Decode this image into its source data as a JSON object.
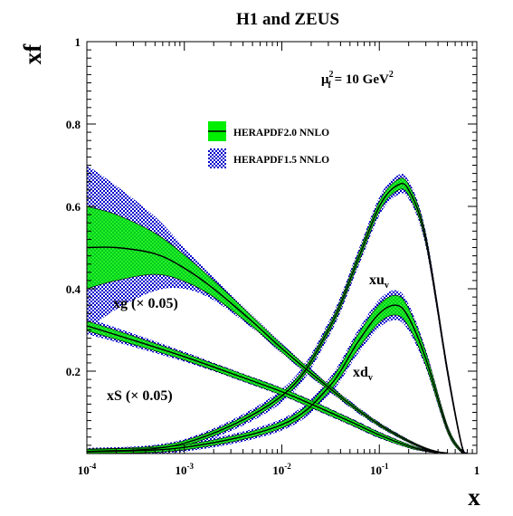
{
  "chart_data": {
    "type": "area",
    "title": "H1 and ZEUS",
    "xlabel": "x",
    "ylabel": "xf",
    "xscale": "log",
    "xlim": [
      0.0001,
      1
    ],
    "ylim": [
      0,
      1
    ],
    "x_tick_labels": [
      {
        "value": 0.0001,
        "base": "10",
        "exp": "-4"
      },
      {
        "value": 0.001,
        "base": "10",
        "exp": "-3"
      },
      {
        "value": 0.01,
        "base": "10",
        "exp": "-2"
      },
      {
        "value": 0.1,
        "base": "10",
        "exp": "-1"
      },
      {
        "value": 1,
        "base": "1",
        "exp": ""
      }
    ],
    "y_tick_labels": [
      {
        "value": 0.2,
        "label": "0.2"
      },
      {
        "value": 0.4,
        "label": "0.4"
      },
      {
        "value": 0.6,
        "label": "0.6"
      },
      {
        "value": 0.8,
        "label": "0.8"
      },
      {
        "value": 1.0,
        "label": "1"
      }
    ],
    "scale_label": {
      "base": "μ",
      "sup": "2",
      "sub": "f",
      "rest": " = 10 GeV",
      "rest_sup": "2"
    },
    "legend_position": "top-center",
    "legend": [
      {
        "name": "HERAPDF2.0 NNLO",
        "style": "green band with black central line",
        "color": "#00ee00"
      },
      {
        "name": "HERAPDF1.5 NNLO",
        "style": "blue hatched band",
        "color": "#0000cc"
      }
    ],
    "annotations": {
      "xuv": {
        "main": "xu",
        "sub": "v"
      },
      "xdv": {
        "main": "xd",
        "sub": "v"
      },
      "xg": "xg (× 0.05)",
      "xS": "xS (× 0.05)"
    },
    "series": [
      {
        "name": "xu_v",
        "x": [
          0.0001,
          0.001,
          0.01,
          0.03,
          0.06,
          0.1,
          0.15,
          0.2,
          0.3,
          0.5,
          0.7,
          0.8
        ],
        "central": [
          0.005,
          0.025,
          0.14,
          0.3,
          0.47,
          0.6,
          0.65,
          0.64,
          0.52,
          0.2,
          0.02,
          0.0
        ],
        "band_2p0": [
          0.006,
          0.006,
          0.008,
          0.009,
          0.011,
          0.012,
          0.013,
          0.013,
          0.011,
          0.008,
          0.004,
          0.002
        ],
        "band_1p5": [
          0.008,
          0.01,
          0.016,
          0.018,
          0.02,
          0.022,
          0.024,
          0.022,
          0.018,
          0.012,
          0.006,
          0.003
        ]
      },
      {
        "name": "xd_v",
        "x": [
          0.0001,
          0.001,
          0.01,
          0.03,
          0.06,
          0.1,
          0.15,
          0.2,
          0.3,
          0.5,
          0.7,
          0.8
        ],
        "central": [
          0.004,
          0.015,
          0.07,
          0.16,
          0.27,
          0.34,
          0.36,
          0.33,
          0.23,
          0.06,
          0.005,
          0.0
        ],
        "band_2p0": [
          0.006,
          0.006,
          0.008,
          0.012,
          0.018,
          0.022,
          0.024,
          0.022,
          0.016,
          0.008,
          0.003,
          0.002
        ],
        "band_1p5": [
          0.008,
          0.01,
          0.014,
          0.02,
          0.028,
          0.034,
          0.036,
          0.032,
          0.022,
          0.01,
          0.004,
          0.002
        ]
      },
      {
        "name": "xg (× 0.05)",
        "x": [
          0.0001,
          0.0002,
          0.0005,
          0.001,
          0.002,
          0.005,
          0.01,
          0.02,
          0.05,
          0.1,
          0.2,
          0.3,
          0.4,
          0.5
        ],
        "central": [
          0.5,
          0.5,
          0.485,
          0.45,
          0.4,
          0.32,
          0.255,
          0.195,
          0.12,
          0.07,
          0.03,
          0.012,
          0.004,
          0.001
        ],
        "band_2p0": [
          0.1,
          0.08,
          0.05,
          0.032,
          0.02,
          0.012,
          0.009,
          0.007,
          0.005,
          0.004,
          0.003,
          0.002,
          0.001,
          0.001
        ],
        "band_1p5": [
          0.2,
          0.15,
          0.09,
          0.05,
          0.028,
          0.016,
          0.012,
          0.01,
          0.008,
          0.006,
          0.004,
          0.002,
          0.001,
          0.001
        ]
      },
      {
        "name": "xS (× 0.05)",
        "x": [
          0.0001,
          0.0003,
          0.001,
          0.003,
          0.01,
          0.02,
          0.05,
          0.1,
          0.2,
          0.3,
          0.4
        ],
        "central": [
          0.31,
          0.275,
          0.235,
          0.195,
          0.15,
          0.12,
          0.078,
          0.045,
          0.018,
          0.007,
          0.002
        ],
        "band_2p0": [
          0.012,
          0.01,
          0.008,
          0.008,
          0.008,
          0.008,
          0.007,
          0.006,
          0.004,
          0.002,
          0.001
        ],
        "band_1p5": [
          0.02,
          0.016,
          0.012,
          0.01,
          0.01,
          0.01,
          0.009,
          0.008,
          0.005,
          0.003,
          0.001
        ]
      }
    ]
  }
}
